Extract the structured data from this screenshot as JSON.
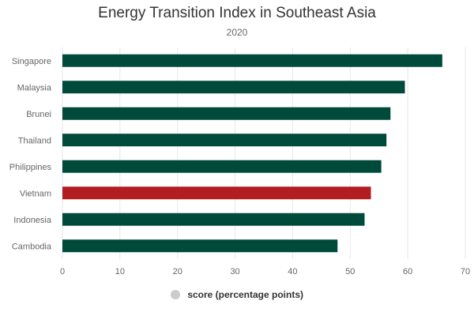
{
  "chart_data": {
    "type": "bar",
    "orientation": "horizontal",
    "title": "Energy Transition Index in Southeast Asia",
    "subtitle": "2020",
    "categories": [
      "Singapore",
      "Malaysia",
      "Brunei",
      "Thailand",
      "Philippines",
      "Vietnam",
      "Indonesia",
      "Cambodia"
    ],
    "series": [
      {
        "name": "score (percentage points)",
        "values": [
          66.0,
          59.5,
          57.0,
          56.3,
          55.4,
          53.6,
          52.5,
          47.8
        ]
      }
    ],
    "xlim": [
      0,
      70
    ],
    "xticks": [
      "0",
      "10",
      "20",
      "30",
      "40",
      "50",
      "60",
      "70"
    ],
    "grid": true,
    "legend": "bottom-center",
    "colors": {
      "bar": "#004a3b",
      "highlight": "#b11d21",
      "legend_marker": "#cccccc",
      "grid": "#e6e6e6"
    },
    "highlight_category": "Vietnam"
  }
}
